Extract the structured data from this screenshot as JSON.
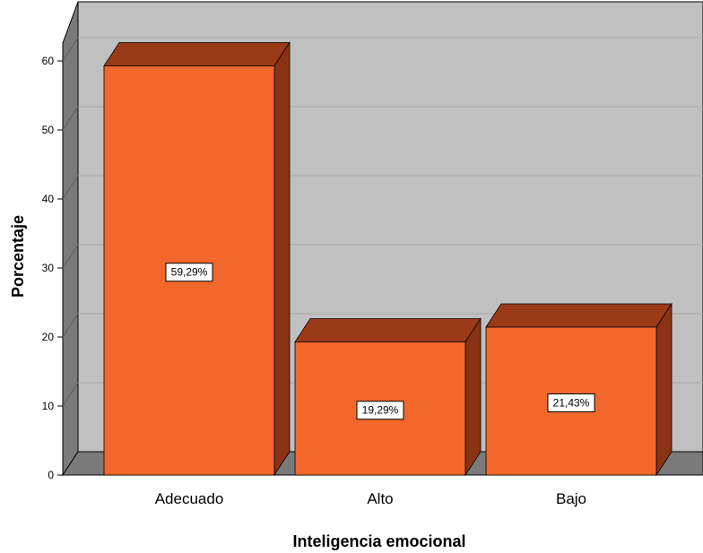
{
  "chart_data": {
    "type": "bar",
    "title": "",
    "xlabel": "Inteligencia emocional",
    "ylabel": "Porcentaje",
    "categories": [
      "Adecuado",
      "Alto",
      "Bajo"
    ],
    "values": [
      59.29,
      19.29,
      21.43
    ],
    "data_labels": [
      "59,29%",
      "19,29%",
      "21,43%"
    ],
    "y_ticks": [
      0,
      10,
      20,
      30,
      40,
      50,
      60
    ],
    "ylim": [
      0,
      60
    ],
    "grid": true,
    "style": "3d",
    "colors": {
      "bar_front": "#f2672b",
      "bar_top": "#9a3a16",
      "bar_side": "#8a3314",
      "wall": "#c0c0c0",
      "wall_side": "#7a7a7a",
      "floor": "#7a7a7a",
      "grid": "#a8a8a8"
    }
  }
}
